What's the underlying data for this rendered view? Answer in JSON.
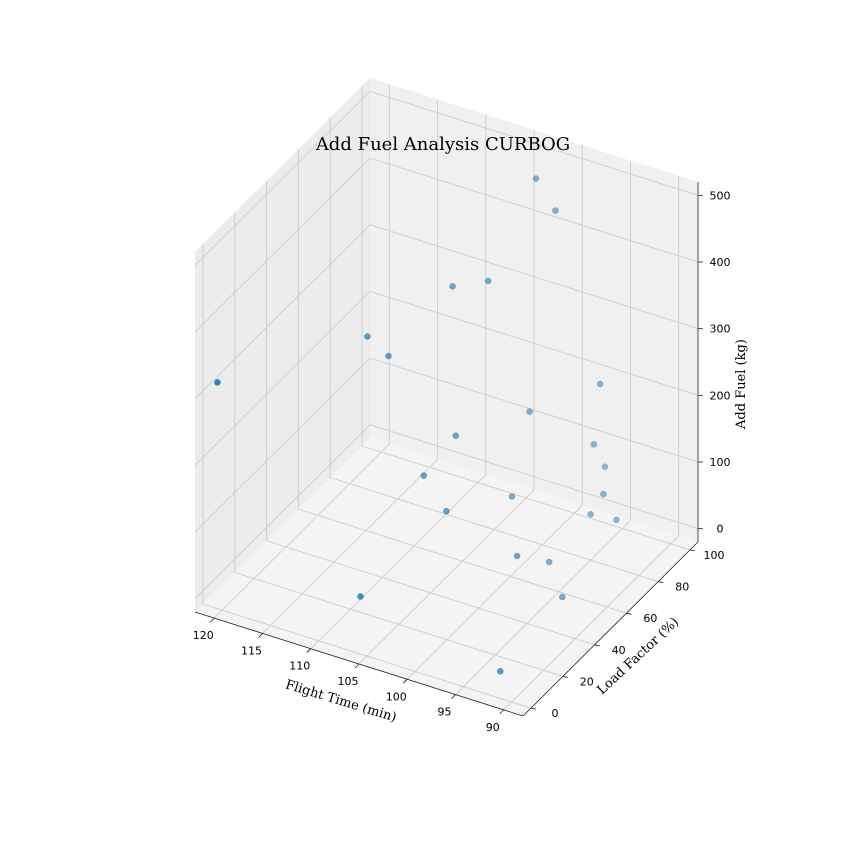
{
  "chart_data": {
    "type": "scatter",
    "title": "Add Fuel Analysis CURBOG",
    "xlabel": "Flight Time (min)",
    "ylabel": "Load Factor (%)",
    "zlabel": "Add Fuel (kg)",
    "xlim": [
      88,
      122
    ],
    "ylim": [
      -5,
      105
    ],
    "zlim": [
      -20,
      520
    ],
    "xticks": [
      "120",
      "115",
      "110",
      "105",
      "100",
      "95",
      "90"
    ],
    "yticks": [
      "0",
      "20",
      "40",
      "60",
      "80",
      "100"
    ],
    "zticks": [
      "0",
      "100",
      "200",
      "300",
      "400",
      "500"
    ],
    "grid": true,
    "legend": "none",
    "colors": {
      "marker": "#1f77b4",
      "pane": "#f2f2f2",
      "grid": "#cccccc"
    },
    "points": [
      [
        121.0,
        3.0,
        310.0
      ],
      [
        106.0,
        2.0,
        60.0
      ],
      [
        92.0,
        5.0,
        5.0
      ],
      [
        109.0,
        60.0,
        90.0
      ],
      [
        106.0,
        56.0,
        60.0
      ],
      [
        107.0,
        68.0,
        140.0
      ],
      [
        112.0,
        56.0,
        265.0
      ],
      [
        108.0,
        72.0,
        350.0
      ],
      [
        116.0,
        67.0,
        250.0
      ],
      [
        103.0,
        64.0,
        400.0
      ],
      [
        101.0,
        82.0,
        520.0
      ],
      [
        98.0,
        76.0,
        500.0
      ],
      [
        99.0,
        58.0,
        20.0
      ],
      [
        96.0,
        60.0,
        20.0
      ],
      [
        93.0,
        50.0,
        5.0
      ],
      [
        102.0,
        73.0,
        60.0
      ],
      [
        95.0,
        86.0,
        230.0
      ],
      [
        96.0,
        95.0,
        80.0
      ],
      [
        96.0,
        88.0,
        130.0
      ],
      [
        101.0,
        78.0,
        180.0
      ],
      [
        96.0,
        86.0,
        30.0
      ],
      [
        95.0,
        88.0,
        60.0
      ],
      [
        93.0,
        84.0,
        40.0
      ]
    ]
  }
}
